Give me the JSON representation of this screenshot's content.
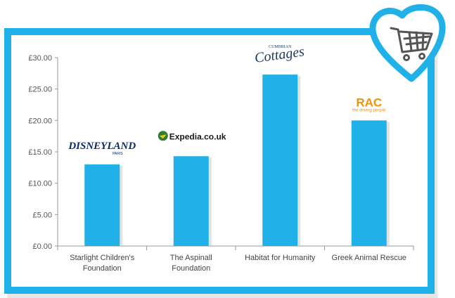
{
  "chart_data": {
    "type": "bar",
    "categories": [
      [
        "Starlight Children's",
        "Foundation"
      ],
      [
        "The Aspinall",
        "Foundation"
      ],
      [
        "Habitat for Humanity"
      ],
      [
        "Greek Animal Rescue"
      ]
    ],
    "values": [
      13.0,
      14.3,
      27.3,
      20.0
    ],
    "ylim": [
      0,
      30
    ],
    "yticks": [
      "£0.00",
      "£5.00",
      "£10.00",
      "£15.00",
      "£20.00",
      "£25.00",
      "£30.00"
    ],
    "bar_color": "#1FB1E8",
    "grid": false,
    "title": "",
    "xlabel": "",
    "ylabel": ""
  },
  "logos": [
    {
      "main": "DISNEYLAND",
      "sub": "PARIS",
      "icon": "disneyland-paris-logo"
    },
    {
      "main": "Expedia.co.uk",
      "icon": "expedia-logo"
    },
    {
      "main": "Cottages",
      "sub": "CUMBRIAN",
      "icon": "cumbrian-cottages-logo"
    },
    {
      "main": "RAC",
      "sub": "the driving people",
      "icon": "rac-logo"
    }
  ],
  "badge": {
    "icon": "shopping-cart-heart-icon",
    "color": "#1FB1E8"
  }
}
